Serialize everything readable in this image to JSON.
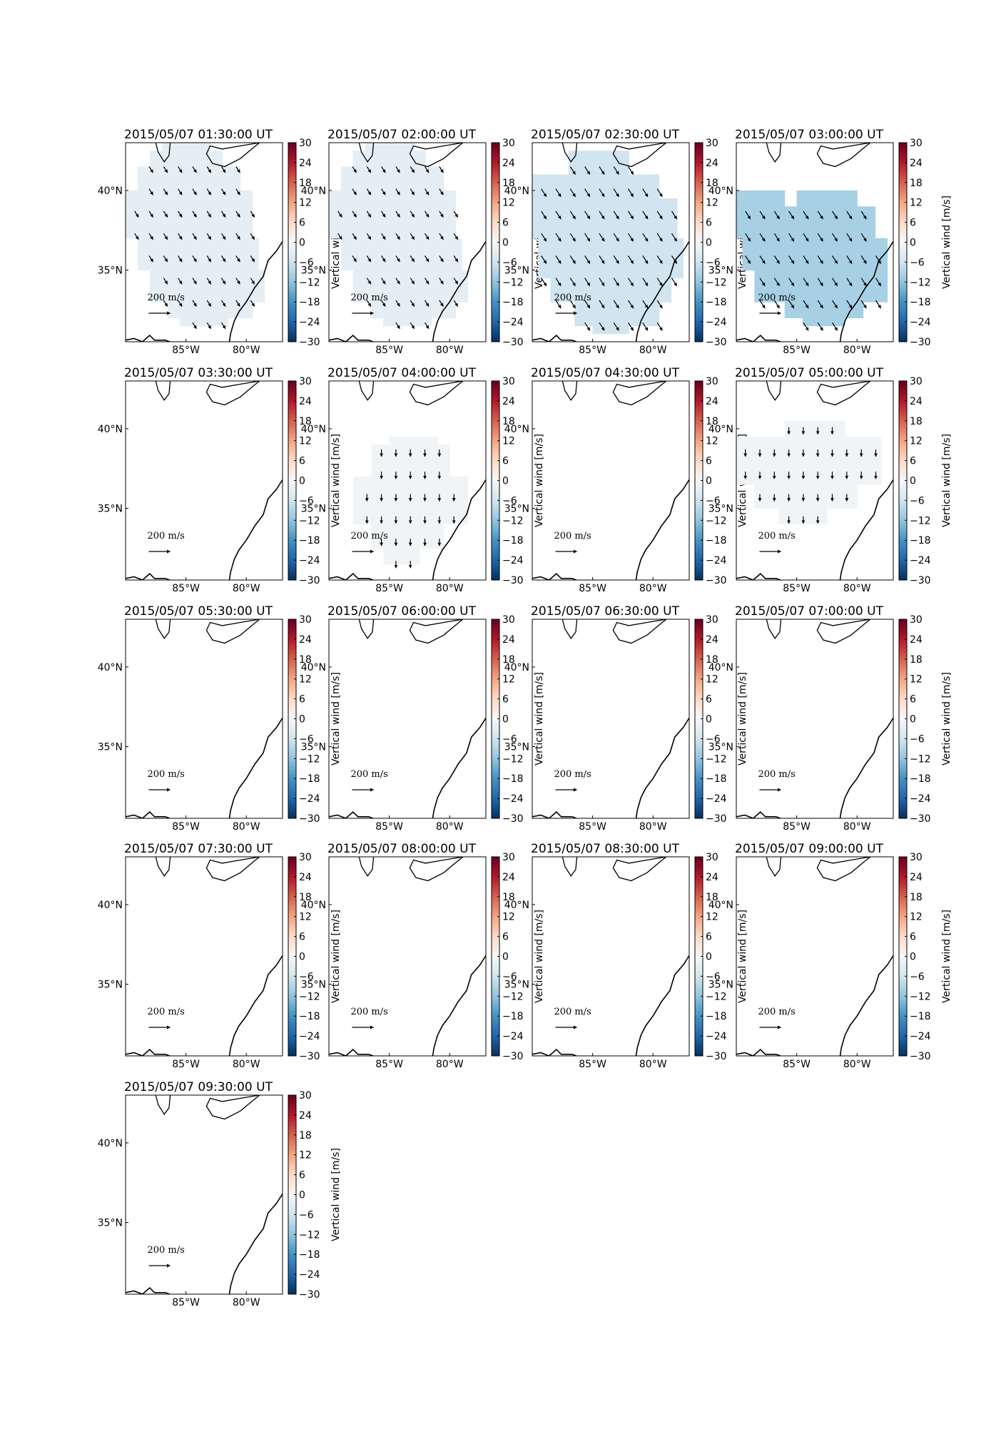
{
  "chart_data": {
    "type": "heatmap",
    "layout": {
      "rows": 5,
      "cols": 4
    },
    "colorbar": {
      "label": "Vertical wind [m/s]",
      "range": [
        -30,
        30
      ],
      "ticks": [
        "30",
        "24",
        "18",
        "12",
        "6",
        "0",
        "−6",
        "−12",
        "−18",
        "−24",
        "−30"
      ],
      "colormap": [
        "#67001f",
        "#b2182b",
        "#d6604d",
        "#f4a582",
        "#fddbc7",
        "#f7f7f7",
        "#d1e5f0",
        "#92c5de",
        "#4393c3",
        "#2166ac",
        "#053061"
      ]
    },
    "map": {
      "lon_range": [
        -90,
        -77
      ],
      "lat_range": [
        30.5,
        43
      ],
      "lon_ticks": [
        "85°W",
        "80°W"
      ],
      "lat_ticks": [
        "40°N",
        "35°N"
      ]
    },
    "quiver_key": {
      "value": "200",
      "unit_num": "m",
      "unit_den": "s"
    },
    "panels": [
      {
        "title": "2015/05/07 01:30:00 UT",
        "vertical_wind": -3,
        "region": "r1",
        "arrows": "southeast"
      },
      {
        "title": "2015/05/07 02:00:00 UT",
        "vertical_wind": -3,
        "region": "r1",
        "arrows": "southeast"
      },
      {
        "title": "2015/05/07 02:30:00 UT",
        "vertical_wind": -6,
        "region": "r2",
        "arrows": "southeast"
      },
      {
        "title": "2015/05/07 03:00:00 UT",
        "vertical_wind": -10,
        "region": "r3",
        "arrows": "southeast"
      },
      {
        "title": "2015/05/07 03:30:00 UT",
        "vertical_wind": null,
        "region": null,
        "arrows": null
      },
      {
        "title": "2015/05/07 04:00:00 UT",
        "vertical_wind": -1,
        "region": "r4",
        "arrows": "south"
      },
      {
        "title": "2015/05/07 04:30:00 UT",
        "vertical_wind": null,
        "region": null,
        "arrows": null
      },
      {
        "title": "2015/05/07 05:00:00 UT",
        "vertical_wind": -1,
        "region": "r5",
        "arrows": "south"
      },
      {
        "title": "2015/05/07 05:30:00 UT",
        "vertical_wind": null,
        "region": null,
        "arrows": null
      },
      {
        "title": "2015/05/07 06:00:00 UT",
        "vertical_wind": null,
        "region": null,
        "arrows": null
      },
      {
        "title": "2015/05/07 06:30:00 UT",
        "vertical_wind": null,
        "region": null,
        "arrows": null
      },
      {
        "title": "2015/05/07 07:00:00 UT",
        "vertical_wind": null,
        "region": null,
        "arrows": null
      },
      {
        "title": "2015/05/07 07:30:00 UT",
        "vertical_wind": null,
        "region": null,
        "arrows": null
      },
      {
        "title": "2015/05/07 08:00:00 UT",
        "vertical_wind": null,
        "region": null,
        "arrows": null
      },
      {
        "title": "2015/05/07 08:30:00 UT",
        "vertical_wind": null,
        "region": null,
        "arrows": null
      },
      {
        "title": "2015/05/07 09:00:00 UT",
        "vertical_wind": null,
        "region": null,
        "arrows": null
      },
      {
        "title": "2015/05/07 09:30:00 UT",
        "vertical_wind": null,
        "region": null,
        "arrows": null
      }
    ]
  }
}
